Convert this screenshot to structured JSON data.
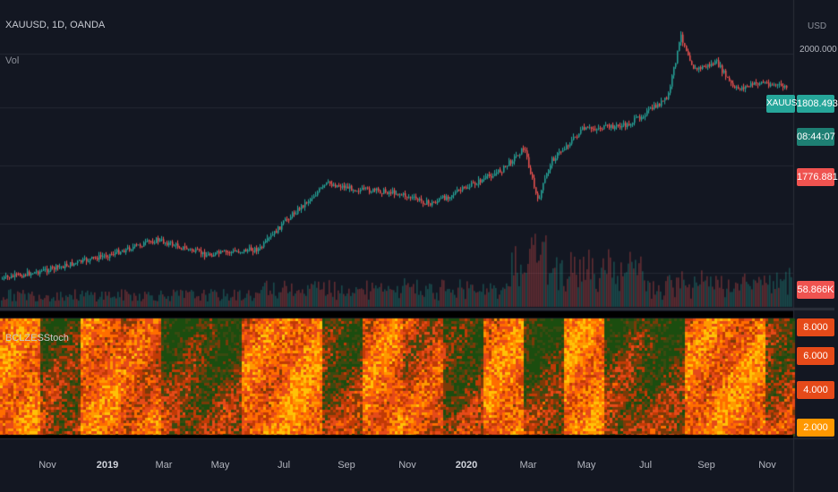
{
  "header": {
    "symbol_info": "XAUUSD, 1D, OANDA",
    "volume_label": "Vol",
    "indicator_label": "BCLZESStoch",
    "currency": "USD"
  },
  "price_scale": {
    "top_value": "2000.000",
    "current_symbol": "XAUUSD",
    "current_price": "1808.493",
    "countdown": "08:44:07",
    "other_price": "1776.881",
    "volume_value": "58.866K"
  },
  "indicator_scale": [
    "8.000",
    "6.000",
    "4.000",
    "2.000"
  ],
  "x_axis": [
    {
      "label": "Nov",
      "bold": false
    },
    {
      "label": "2019",
      "bold": true
    },
    {
      "label": "Mar",
      "bold": false
    },
    {
      "label": "May",
      "bold": false
    },
    {
      "label": "Jul",
      "bold": false
    },
    {
      "label": "Sep",
      "bold": false
    },
    {
      "label": "Nov",
      "bold": false
    },
    {
      "label": "2020",
      "bold": true
    },
    {
      "label": "Mar",
      "bold": false
    },
    {
      "label": "May",
      "bold": false
    },
    {
      "label": "Jul",
      "bold": false
    },
    {
      "label": "Sep",
      "bold": false
    },
    {
      "label": "Nov",
      "bold": false
    }
  ],
  "colors": {
    "background": "#131722",
    "up": "#26a69a",
    "down": "#ef5350",
    "accent_teal": "#26a69a",
    "accent_red": "#ef5350",
    "heat_hot": "#ff9800",
    "heat_green": "#1b4d0f"
  }
}
